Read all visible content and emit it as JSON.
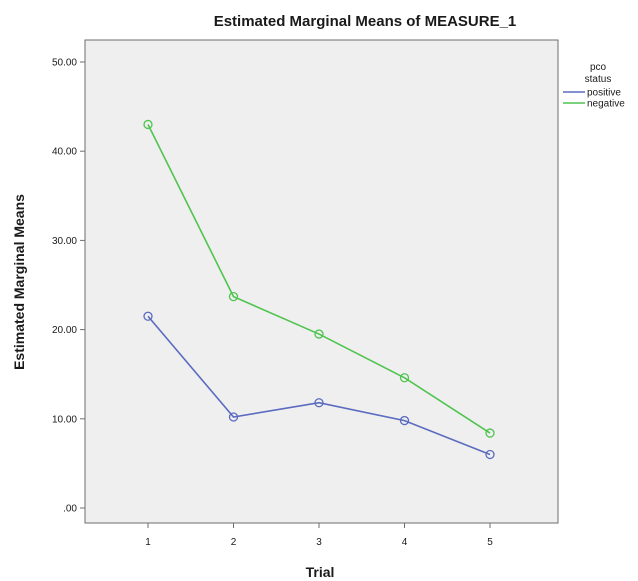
{
  "chart_data": {
    "type": "line",
    "title": "Estimated Marginal Means of MEASURE_1",
    "xlabel": "Trial",
    "ylabel": "Estimated Marginal Means",
    "categories": [
      "1",
      "2",
      "3",
      "4",
      "5"
    ],
    "y_ticks": [
      ".00",
      "10.00",
      "20.00",
      "30.00",
      "40.00",
      "50.00"
    ],
    "ylim": [
      0,
      50
    ],
    "grid": false,
    "legend": {
      "title_lines": [
        "pco",
        "status"
      ],
      "placement": "right"
    },
    "series": [
      {
        "name": "positive",
        "color": "#5b6bbf",
        "values": [
          21.5,
          10.2,
          11.8,
          9.8,
          6.0
        ]
      },
      {
        "name": "negative",
        "color": "#4fc44f",
        "values": [
          43.0,
          23.7,
          19.5,
          14.6,
          8.4
        ]
      }
    ],
    "plot_background": "#efefef"
  }
}
